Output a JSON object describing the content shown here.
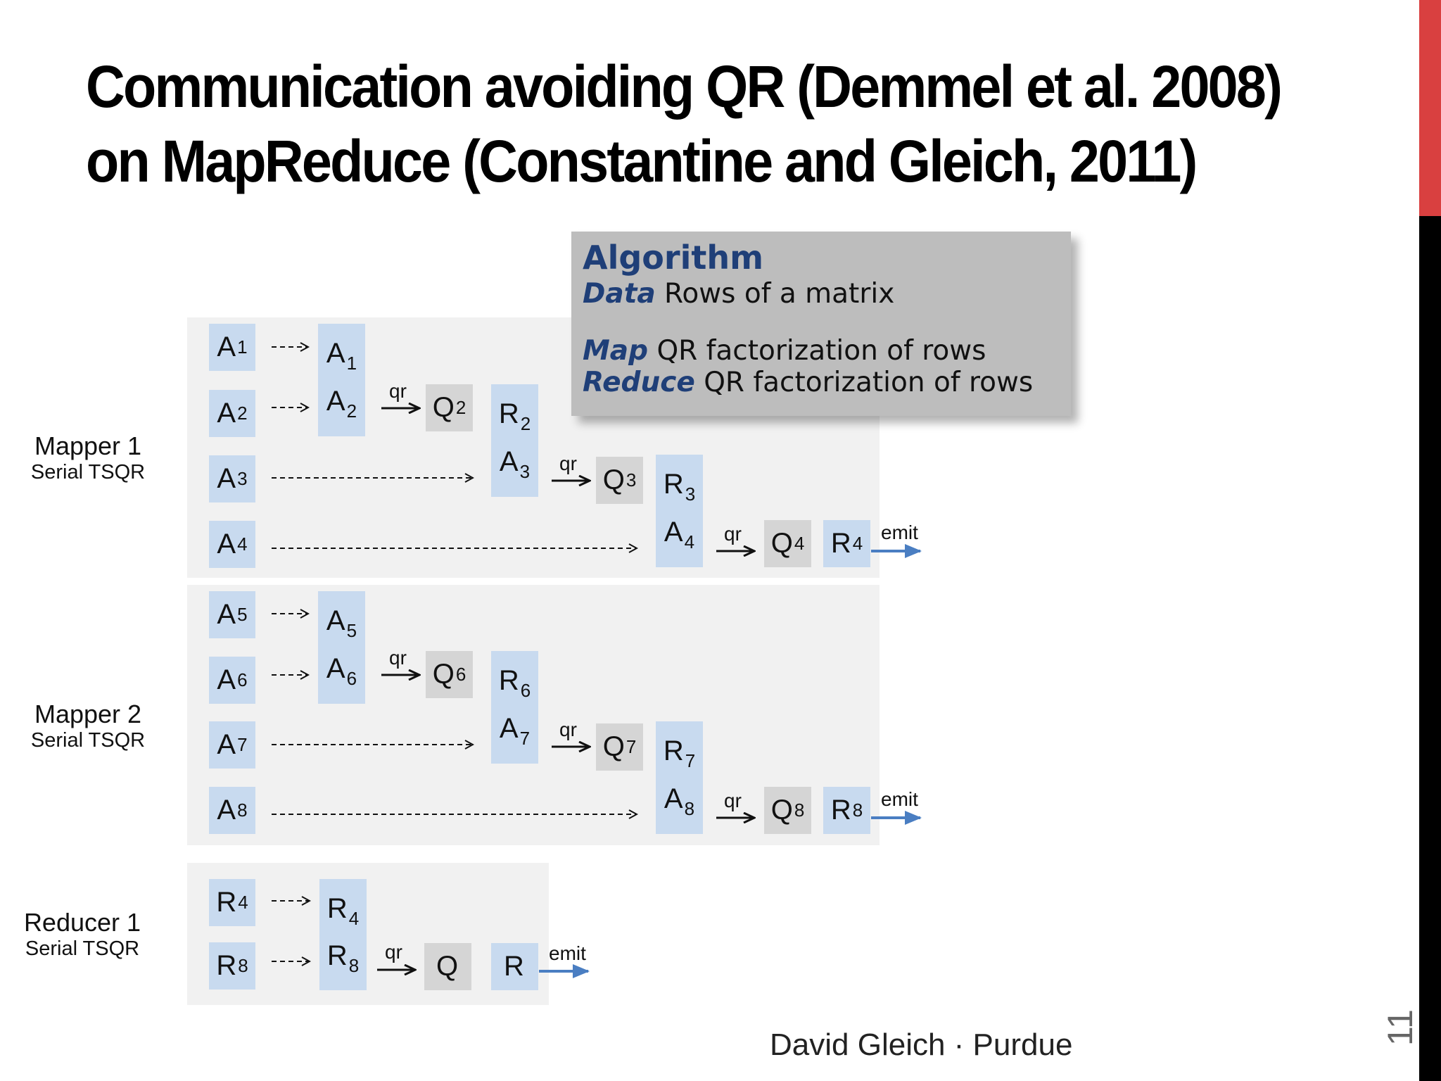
{
  "slide": {
    "title_line1": "Communication avoiding QR (Demmel et al. 2008)",
    "title_line2": "on MapReduce (Constantine and Gleich, 2011)",
    "footer": "David Gleich · Purdue",
    "page_number": "11",
    "accent_red": "#d94040",
    "accent_black": "#000000"
  },
  "algorithm": {
    "heading": "Algorithm",
    "lines": [
      {
        "keyword": "Data",
        "text": " Rows of a matrix"
      },
      {
        "keyword": "Map",
        "text": " QR factorization of rows"
      },
      {
        "keyword": "Reduce",
        "text": " QR factorization of rows"
      }
    ]
  },
  "labels": {
    "qr": "qr",
    "emit": "emit"
  },
  "stages": [
    {
      "name": "Mapper 1",
      "subtitle": "Serial TSQR"
    },
    {
      "name": "Mapper 2",
      "subtitle": "Serial TSQR"
    },
    {
      "name": "Reducer 1",
      "subtitle": "Serial TSQR"
    }
  ],
  "boxes": {
    "m1_in": [
      [
        "A",
        "1"
      ],
      [
        "A",
        "2"
      ],
      [
        "A",
        "3"
      ],
      [
        "A",
        "4"
      ]
    ],
    "m1_s1": [
      [
        "A",
        "1"
      ],
      [
        "A",
        "2"
      ]
    ],
    "m1_q2": [
      "Q",
      "2"
    ],
    "m1_s2": [
      [
        "R",
        "2"
      ],
      [
        "A",
        "3"
      ]
    ],
    "m1_q3": [
      "Q",
      "3"
    ],
    "m1_s3": [
      [
        "R",
        "3"
      ],
      [
        "A",
        "4"
      ]
    ],
    "m1_q4": [
      "Q",
      "4"
    ],
    "m1_r4": [
      "R",
      "4"
    ],
    "m2_in": [
      [
        "A",
        "5"
      ],
      [
        "A",
        "6"
      ],
      [
        "A",
        "7"
      ],
      [
        "A",
        "8"
      ]
    ],
    "m2_s1": [
      [
        "A",
        "5"
      ],
      [
        "A",
        "6"
      ]
    ],
    "m2_q6": [
      "Q",
      "6"
    ],
    "m2_s2": [
      [
        "R",
        "6"
      ],
      [
        "A",
        "7"
      ]
    ],
    "m2_q7": [
      "Q",
      "7"
    ],
    "m2_s3": [
      [
        "R",
        "7"
      ],
      [
        "A",
        "8"
      ]
    ],
    "m2_q8": [
      "Q",
      "8"
    ],
    "m2_r8": [
      "R",
      "8"
    ],
    "r_in": [
      [
        "R",
        "4"
      ],
      [
        "R",
        "8"
      ]
    ],
    "r_s1": [
      [
        "R",
        "4"
      ],
      [
        "R",
        "8"
      ]
    ],
    "r_q": [
      "Q",
      ""
    ],
    "r_r": [
      "R",
      ""
    ]
  }
}
